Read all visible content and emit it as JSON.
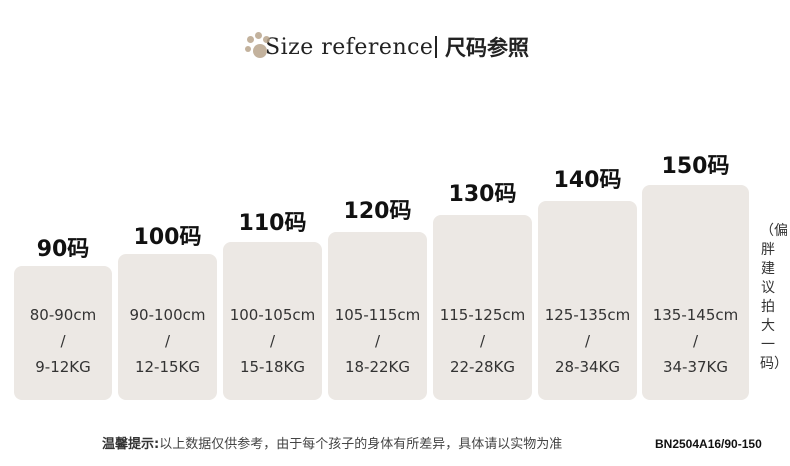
{
  "title": {
    "en": "Size reference",
    "cn": "尺码参照"
  },
  "sizes": [
    {
      "label": "90码",
      "height": "80-90cm",
      "sep": "/",
      "weight": "9-12KG"
    },
    {
      "label": "100码",
      "height": "90-100cm",
      "sep": "/",
      "weight": "12-15KG"
    },
    {
      "label": "110码",
      "height": "100-105cm",
      "sep": "/",
      "weight": "15-18KG"
    },
    {
      "label": "120码",
      "height": "105-115cm",
      "sep": "/",
      "weight": "18-22KG"
    },
    {
      "label": "130码",
      "height": "115-125cm",
      "sep": "/",
      "weight": "22-28KG"
    },
    {
      "label": "140码",
      "height": "125-135cm",
      "sep": "/",
      "weight": "28-34KG"
    },
    {
      "label": "150码",
      "height": "135-145cm",
      "sep": "/",
      "weight": "34-37KG"
    }
  ],
  "side_note": "（偏胖建议拍大一码）",
  "footer": {
    "prefix": "温馨提示:",
    "text": "以上数据仅供参考，由于每个孩子的身体有所差异，具体请以实物为准",
    "code": "BN2504A16/90-150"
  },
  "colors": {
    "box": "#ece8e4",
    "paw": "#b8a48c"
  }
}
